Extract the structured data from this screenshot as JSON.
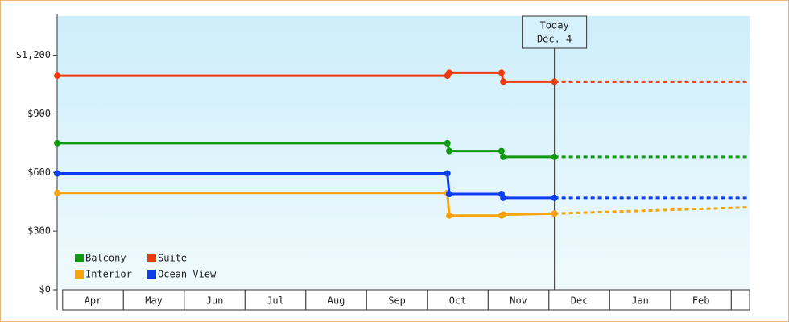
{
  "chart_data": {
    "type": "line",
    "categories": [
      "Apr",
      "May",
      "Jun",
      "Jul",
      "Aug",
      "Sep",
      "Oct",
      "Nov",
      "Dec",
      "Jan",
      "Feb",
      null
    ],
    "xlim": [
      -0.09,
      11.3
    ],
    "ylim": [
      0,
      1400
    ],
    "yticks": [
      {
        "value": 0,
        "label": "$0"
      },
      {
        "value": 300,
        "label": "$300"
      },
      {
        "value": 600,
        "label": "$600"
      },
      {
        "value": 900,
        "label": "$900"
      },
      {
        "value": 1200,
        "label": "$1,200"
      }
    ],
    "legend": "bottom-left",
    "annotation": {
      "lines": [
        "Today",
        "Dec. 4"
      ],
      "x": 8.09
    },
    "series": [
      {
        "name": "Balcony",
        "color": "#119911",
        "x": [
          -0.09,
          6.33,
          6.36,
          7.22,
          7.25,
          8.09
        ],
        "values": [
          750,
          750,
          710,
          710,
          680,
          680
        ],
        "forecast": {
          "x": [
            8.09,
            11.3
          ],
          "values": [
            680,
            680
          ]
        }
      },
      {
        "name": "Suite",
        "color": "#ee3a0e",
        "x": [
          -0.09,
          6.33,
          6.36,
          7.22,
          7.25,
          8.09
        ],
        "values": [
          1095,
          1095,
          1110,
          1110,
          1065,
          1065
        ],
        "forecast": {
          "x": [
            8.09,
            11.3
          ],
          "values": [
            1065,
            1065
          ]
        }
      },
      {
        "name": "Interior",
        "color": "#f5a40c",
        "x": [
          -0.09,
          6.33,
          6.36,
          7.22,
          7.25,
          8.09
        ],
        "values": [
          495,
          495,
          380,
          380,
          385,
          390
        ],
        "forecast": {
          "x": [
            8.09,
            11.3
          ],
          "values": [
            390,
            422
          ]
        }
      },
      {
        "name": "Ocean View",
        "color": "#0c3ef0",
        "x": [
          -0.09,
          6.33,
          6.36,
          7.22,
          7.25,
          8.09
        ],
        "values": [
          595,
          595,
          490,
          490,
          470,
          470
        ],
        "forecast": {
          "x": [
            8.09,
            11.3
          ],
          "values": [
            470,
            470
          ]
        }
      }
    ]
  }
}
